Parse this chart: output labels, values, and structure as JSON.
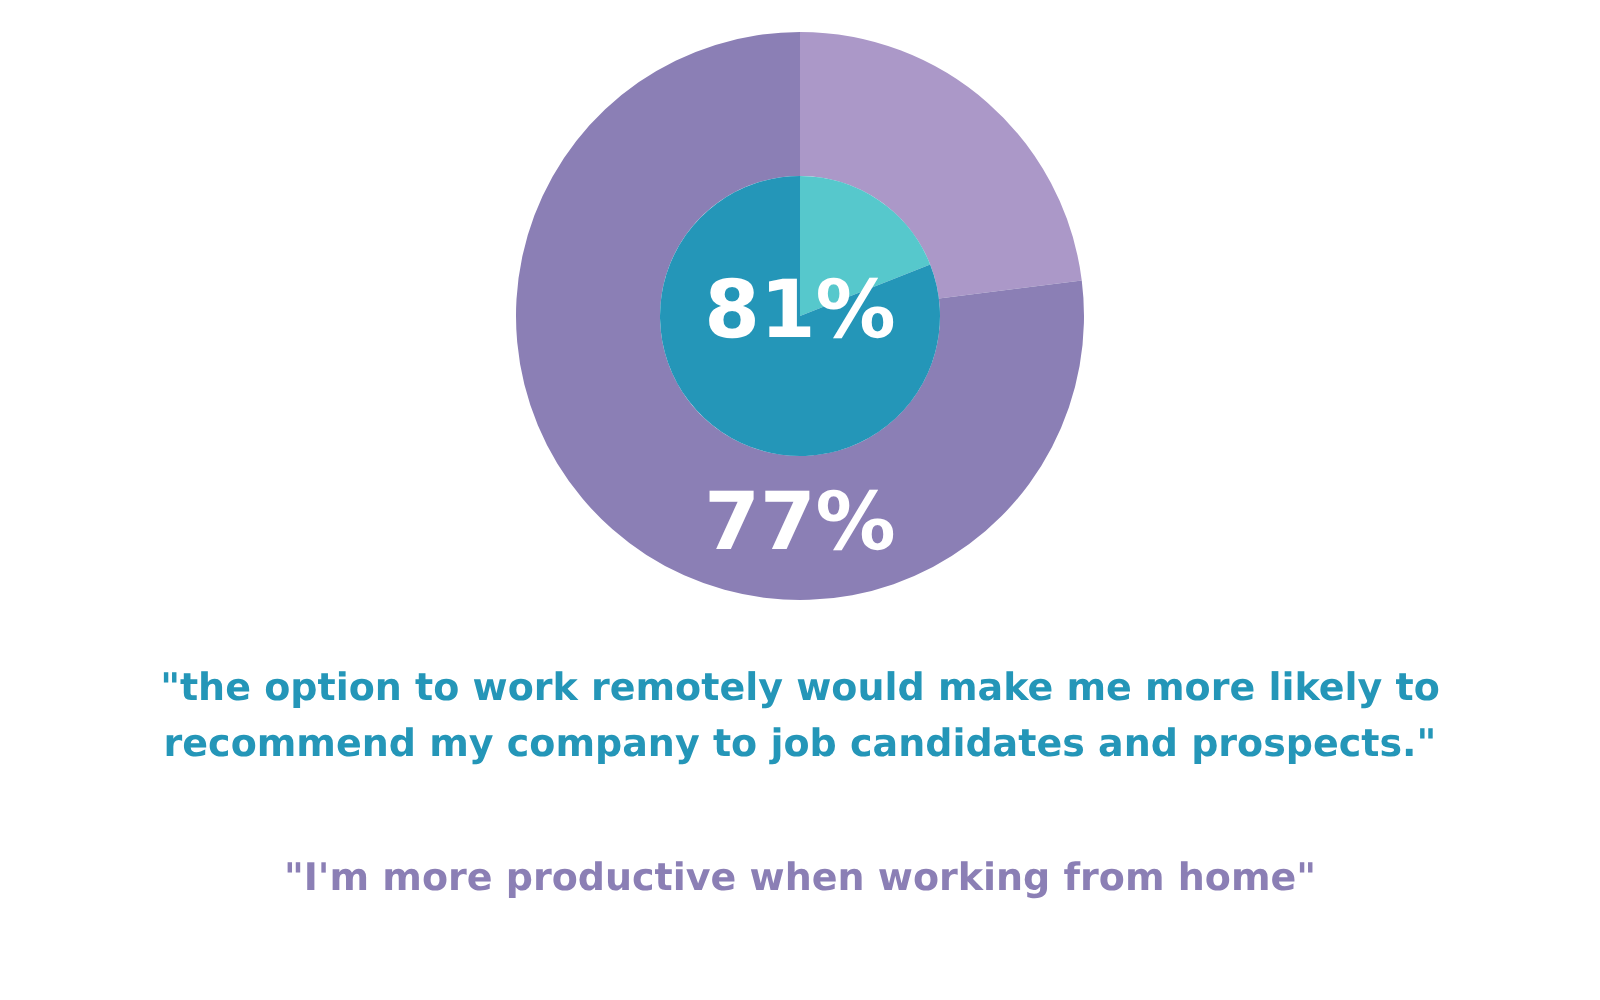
{
  "chart_data": [
    {
      "type": "donut",
      "categories": [
        null,
        null
      ],
      "values": [
        23,
        77
      ],
      "colors": [
        "#ab98c8",
        "#8b7fb5"
      ],
      "value_labels": [
        null,
        "77%"
      ],
      "annotations": [
        "\"I'm more productive when working from home\""
      ]
    },
    {
      "type": "pie",
      "categories": [
        null,
        null
      ],
      "values": [
        19,
        81
      ],
      "colors": [
        "#56c8cc",
        "#2496b8"
      ],
      "value_labels": [
        null,
        "81%"
      ],
      "annotations": [
        "\"the option to work remotely would make me more likely to recommend my company to job candidates and prospects.\""
      ]
    }
  ]
}
